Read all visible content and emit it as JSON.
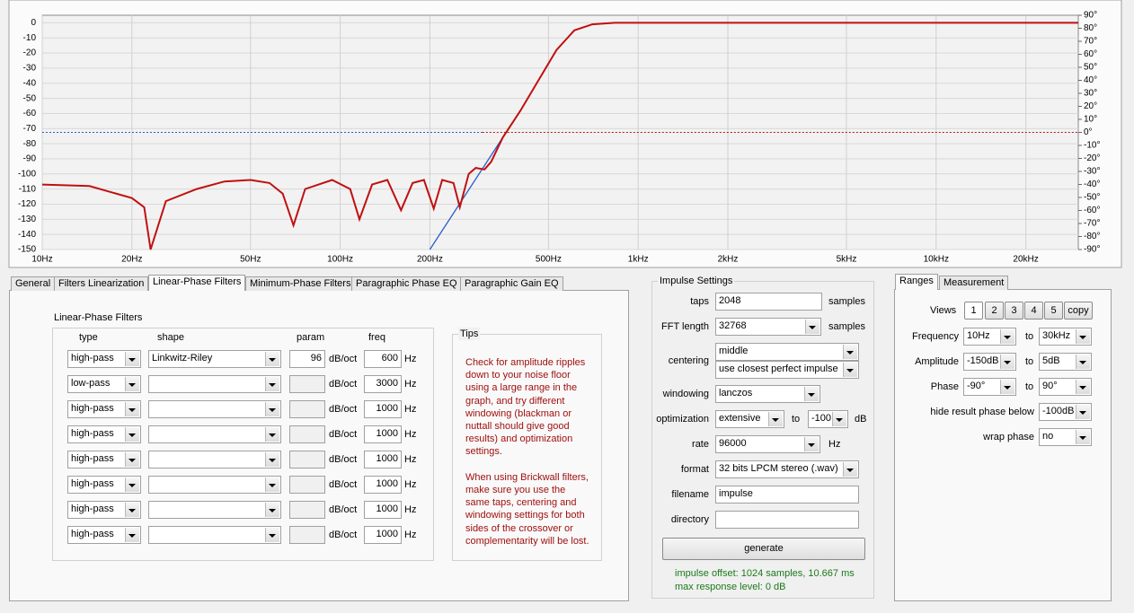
{
  "graph": {
    "type": "line",
    "log_x": true,
    "grid": true,
    "xlim": [
      10,
      30000
    ],
    "ylim": [
      -150,
      5
    ],
    "y2lim": [
      -90,
      90
    ],
    "xticks": [
      {
        "value": 10,
        "label": "10Hz"
      },
      {
        "value": 20,
        "label": "20Hz"
      },
      {
        "value": 50,
        "label": "50Hz"
      },
      {
        "value": 100,
        "label": "100Hz"
      },
      {
        "value": 200,
        "label": "200Hz"
      },
      {
        "value": 500,
        "label": "500Hz"
      },
      {
        "value": 1000,
        "label": "1kHz"
      },
      {
        "value": 2000,
        "label": "2kHz"
      },
      {
        "value": 5000,
        "label": "5kHz"
      },
      {
        "value": 10000,
        "label": "10kHz"
      },
      {
        "value": 20000,
        "label": "20kHz"
      }
    ],
    "yticks": [
      0,
      -10,
      -20,
      -30,
      -40,
      -50,
      -60,
      -70,
      -80,
      -90,
      -100,
      -110,
      -120,
      -130,
      -140,
      -150
    ],
    "y2ticks": [
      {
        "value": 90,
        "label": "90°"
      },
      {
        "value": 80,
        "label": "80°"
      },
      {
        "value": 70,
        "label": "70°"
      },
      {
        "value": 60,
        "label": "60°"
      },
      {
        "value": 50,
        "label": "50°"
      },
      {
        "value": 40,
        "label": "40°"
      },
      {
        "value": 30,
        "label": "30°"
      },
      {
        "value": 20,
        "label": "20°"
      },
      {
        "value": 10,
        "label": "10°"
      },
      {
        "value": 0,
        "label": "0°"
      },
      {
        "value": -10,
        "label": "-10°"
      },
      {
        "value": -20,
        "label": "-20°"
      },
      {
        "value": -30,
        "label": "-30°"
      },
      {
        "value": -40,
        "label": "-40°"
      },
      {
        "value": -50,
        "label": "-50°"
      },
      {
        "value": -60,
        "label": "-60°"
      },
      {
        "value": -70,
        "label": "-70°"
      },
      {
        "value": -80,
        "label": "-80°"
      },
      {
        "value": -90,
        "label": "-90°"
      }
    ],
    "series": [
      {
        "color": "#2a5cc8",
        "style": "dotted",
        "axis": "y2",
        "x": [
          10,
          300
        ],
        "values": [
          0,
          0
        ]
      },
      {
        "color": "#c01010",
        "style": "dotted",
        "axis": "y2",
        "x": [
          300,
          30000
        ],
        "values": [
          0,
          0
        ]
      },
      {
        "color": "#2a5cc8",
        "style": "solid",
        "x": [
          200,
          351,
          403,
          463,
          532,
          611,
          702,
          835,
          30000
        ],
        "values": [
          -150,
          -76,
          -58,
          -38,
          -18,
          -5,
          -1,
          0,
          0
        ]
      },
      {
        "color": "#c01010",
        "style": "solid",
        "x": [
          10,
          14.4,
          20,
          22,
          23.1,
          26,
          33,
          40.9,
          50,
          57.9,
          64.1,
          69.7,
          76.3,
          94,
          108,
          116,
          128,
          144,
          160,
          175,
          191,
          206,
          220,
          240,
          252,
          270,
          285,
          305,
          321,
          351,
          403,
          463,
          532,
          611,
          702,
          835,
          30000
        ],
        "values": [
          -107,
          -108,
          -116,
          -122,
          -150,
          -118,
          -110,
          -105,
          -104,
          -106,
          -113,
          -134,
          -110,
          -104,
          -110,
          -130,
          -107,
          -104,
          -124,
          -106,
          -104,
          -123,
          -104,
          -106,
          -122,
          -100,
          -96,
          -97,
          -92,
          -76,
          -58,
          -38,
          -18,
          -5,
          -1,
          0,
          0
        ]
      }
    ]
  },
  "tabs": [
    "General",
    "Filters Linearization",
    "Linear-Phase Filters",
    "Minimum-Phase Filters",
    "Paragraphic Phase EQ",
    "Paragraphic Gain EQ"
  ],
  "filters": {
    "title": "Linear-Phase Filters",
    "headers": [
      "type",
      "shape",
      "param",
      "freq"
    ],
    "rows": [
      {
        "type": "high-pass",
        "shape": "Linkwitz-Riley",
        "param": "96",
        "param_unit": "dB/oct",
        "freq": "600",
        "freq_unit": "Hz"
      },
      {
        "type": "low-pass",
        "param_unit": "dB/oct",
        "freq": "3000",
        "freq_unit": "Hz"
      },
      {
        "type": "high-pass",
        "param_unit": "dB/oct",
        "freq": "1000",
        "freq_unit": "Hz"
      },
      {
        "type": "high-pass",
        "param_unit": "dB/oct",
        "freq": "1000",
        "freq_unit": "Hz"
      },
      {
        "type": "high-pass",
        "param_unit": "dB/oct",
        "freq": "1000",
        "freq_unit": "Hz"
      },
      {
        "type": "high-pass",
        "param_unit": "dB/oct",
        "freq": "1000",
        "freq_unit": "Hz"
      },
      {
        "type": "high-pass",
        "param_unit": "dB/oct",
        "freq": "1000",
        "freq_unit": "Hz"
      },
      {
        "type": "high-pass",
        "param_unit": "dB/oct",
        "freq": "1000",
        "freq_unit": "Hz"
      }
    ]
  },
  "tips": {
    "title": "Tips",
    "lines": [
      "Check for amplitude ripples",
      "down to your noise floor",
      "using a large range in the",
      "graph, and try different",
      "windowing (blackman or",
      "nuttall should give good",
      "results) and optimization",
      "settings.",
      "",
      "When using Brickwall filters,",
      "make sure you use the",
      "same taps, centering and",
      "windowing settings for both",
      "sides of the crossover or",
      "complementarity will be lost."
    ]
  },
  "impulse": {
    "title": "Impulse Settings",
    "taps": {
      "label": "taps",
      "value": "2048",
      "unit": "samples"
    },
    "fft": {
      "label": "FFT length",
      "value": "32768",
      "unit": "samples"
    },
    "centering": {
      "label": "centering",
      "value": "middle",
      "mode": "use closest perfect impulse"
    },
    "windowing": {
      "label": "windowing",
      "value": "lanczos"
    },
    "optimization": {
      "label": "optimization",
      "value": "extensive",
      "to": "to",
      "level": "-100",
      "unit": "dB"
    },
    "rate": {
      "label": "rate",
      "value": "96000",
      "unit": "Hz"
    },
    "format": {
      "label": "format",
      "value": "32 bits LPCM stereo (.wav)"
    },
    "filename": {
      "label": "filename",
      "value": "impulse"
    },
    "directory": {
      "label": "directory"
    },
    "button": "generate",
    "status": [
      "impulse offset: 1024 samples, 10.667 ms",
      "max response level: 0 dB"
    ]
  },
  "ranges": {
    "tabs": [
      "Ranges",
      "Measurement"
    ],
    "views_label": "Views",
    "views": [
      "1",
      "2",
      "3",
      "4",
      "5",
      "copy"
    ],
    "rows": [
      {
        "label": "Frequency",
        "from": "10Hz",
        "to": "to",
        "until": "30kHz"
      },
      {
        "label": "Amplitude",
        "from": "-150dB",
        "to": "to",
        "until": "5dB"
      },
      {
        "label": "Phase",
        "from": "-90°",
        "to": "to",
        "until": "90°"
      }
    ],
    "hide": {
      "label": "hide result phase below",
      "value": "-100dB"
    },
    "wrap": {
      "label": "wrap phase",
      "value": "no"
    }
  }
}
